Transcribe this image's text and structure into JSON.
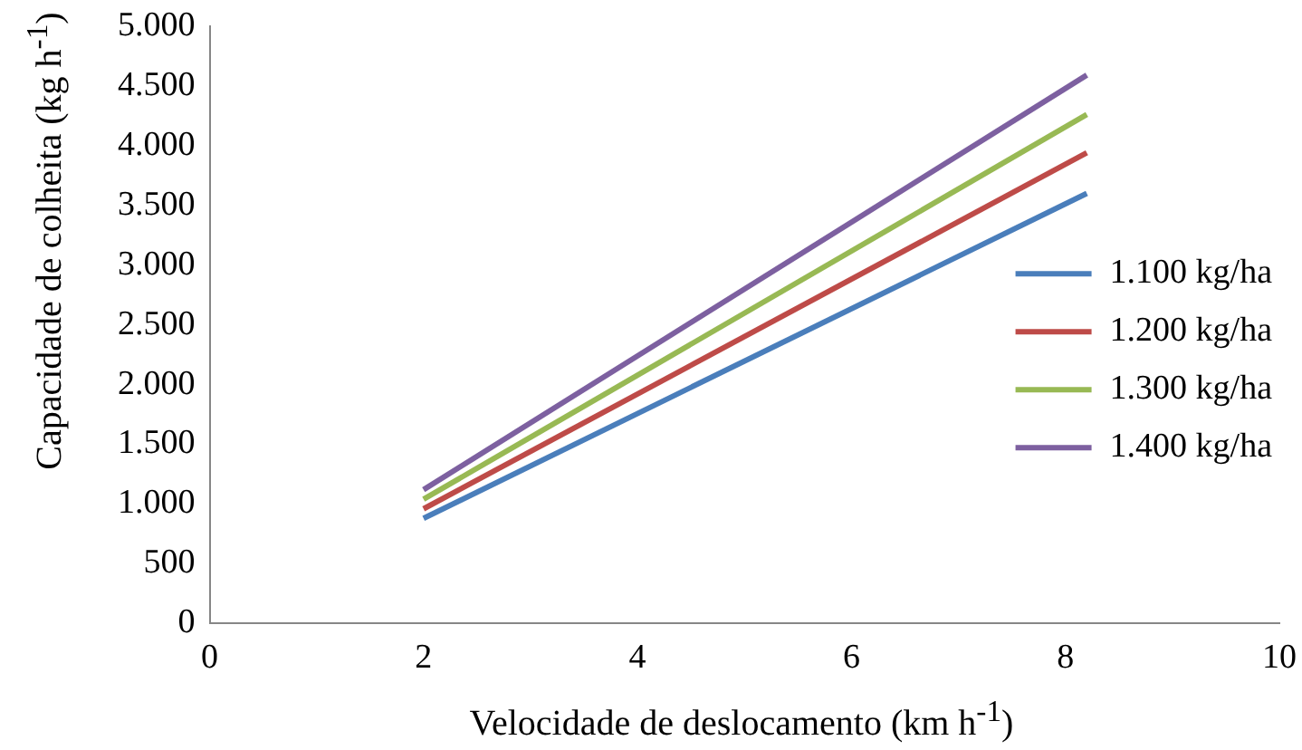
{
  "chart_data": {
    "type": "line",
    "xlabel": "Velocidade de deslocamento (km h$^{-1}$)",
    "ylabel": "Capacidade de colheita (kg h$^{-1}$)",
    "x": [
      2,
      8.2
    ],
    "series": [
      {
        "name": "1.100 kg/ha",
        "color": "#4a7ebb",
        "values": [
          880,
          3600
        ]
      },
      {
        "name": "1.200 kg/ha",
        "color": "#be4b48",
        "values": [
          960,
          3940
        ]
      },
      {
        "name": "1.300 kg/ha",
        "color": "#98b954",
        "values": [
          1040,
          4260
        ]
      },
      {
        "name": "1.400 kg/ha",
        "color": "#7d60a0",
        "values": [
          1120,
          4590
        ]
      }
    ],
    "xlim": [
      0,
      10
    ],
    "xticks": [
      0,
      2,
      4,
      6,
      8,
      10
    ],
    "ylim": [
      0,
      5000
    ],
    "yticks": [
      0,
      500,
      {
        "value": 1000,
        "label": "1.000"
      },
      {
        "value": 1500,
        "label": "1.500"
      },
      {
        "value": 2000,
        "label": "2.000"
      },
      {
        "value": 2500,
        "label": "2.500"
      },
      {
        "value": 3000,
        "label": "3.000"
      },
      {
        "value": 3500,
        "label": "3.500"
      },
      {
        "value": 4000,
        "label": "4.000"
      },
      {
        "value": 4500,
        "label": "4.500"
      },
      {
        "value": 5000,
        "label": "5.000"
      }
    ],
    "grid": false,
    "legend": "right",
    "marker": "none",
    "line_style": "solid"
  }
}
